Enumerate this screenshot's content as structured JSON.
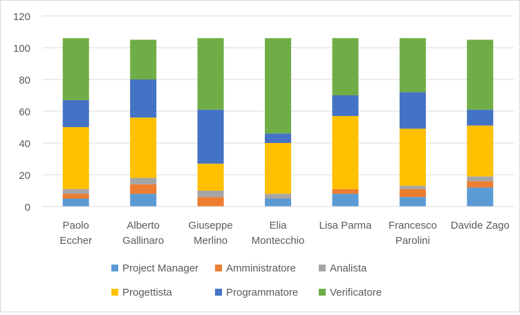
{
  "chart_data": {
    "type": "bar",
    "stacked": true,
    "title": "",
    "xlabel": "",
    "ylabel": "",
    "ylim": [
      0,
      120
    ],
    "yticks": [
      0,
      20,
      40,
      60,
      80,
      100,
      120
    ],
    "grid": true,
    "legend_position": "bottom",
    "categories": [
      [
        "Paolo",
        "Eccher"
      ],
      [
        "Alberto",
        "Gallinaro"
      ],
      [
        "Giuseppe",
        "Merlino"
      ],
      [
        "Elia",
        "Montecchio"
      ],
      [
        "Lisa Parma"
      ],
      [
        "Francesco",
        "Parolini"
      ],
      [
        "Davide Zago"
      ]
    ],
    "series": [
      {
        "name": "Project Manager",
        "color": "#5b9bd5",
        "values": [
          5,
          8,
          0,
          5,
          8,
          6,
          12
        ]
      },
      {
        "name": "Amministratore",
        "color": "#ed7d31",
        "values": [
          3,
          6,
          6,
          0,
          3,
          5,
          4
        ]
      },
      {
        "name": "Analista",
        "color": "#a5a5a5",
        "values": [
          3,
          4,
          4,
          3,
          0,
          2,
          3
        ]
      },
      {
        "name": "Progettista",
        "color": "#ffc000",
        "values": [
          39,
          38,
          17,
          32,
          46,
          36,
          32
        ]
      },
      {
        "name": "Programmatore",
        "color": "#4472c4",
        "values": [
          17,
          24,
          34,
          6,
          13,
          23,
          10
        ]
      },
      {
        "name": "Verificatore",
        "color": "#70ad47",
        "values": [
          39,
          25,
          45,
          60,
          36,
          34,
          44
        ]
      }
    ]
  }
}
